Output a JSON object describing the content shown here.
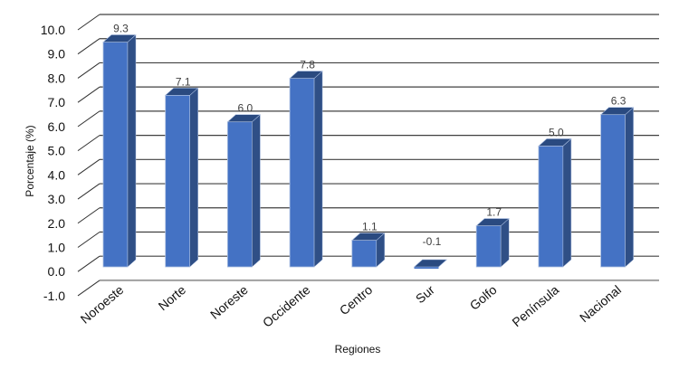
{
  "chart_data": {
    "type": "bar",
    "style": "3d-column",
    "title": "",
    "xlabel": "Regiones",
    "ylabel": "Porcentaje (%)",
    "ylim": [
      -1.0,
      10.0
    ],
    "ytick_step": 1.0,
    "yticks": [
      "-1.0",
      "0.0",
      "1.0",
      "2.0",
      "3.0",
      "4.0",
      "5.0",
      "6.0",
      "7.0",
      "8.0",
      "9.0",
      "10.0"
    ],
    "grid": true,
    "legend": null,
    "categories": [
      "Noroeste",
      "Norte",
      "Noreste",
      "Occidente",
      "Centro",
      "Sur",
      "Golfo",
      "Península",
      "Nacional"
    ],
    "values": [
      9.3,
      7.1,
      6.0,
      7.8,
      1.1,
      -0.1,
      1.7,
      5.0,
      6.3
    ],
    "value_labels": [
      "9.3",
      "7.1",
      "6.0",
      "7.8",
      "1.1",
      "-0.1",
      "1.7",
      "5.0",
      "6.3"
    ],
    "colors": {
      "bar_front": "#4472c4",
      "bar_side": "#2f4f86",
      "bar_top": "#2a4a80",
      "bar_edge": "#a9bde0",
      "grid": "#404040",
      "floor": "#a0a0a0"
    }
  }
}
